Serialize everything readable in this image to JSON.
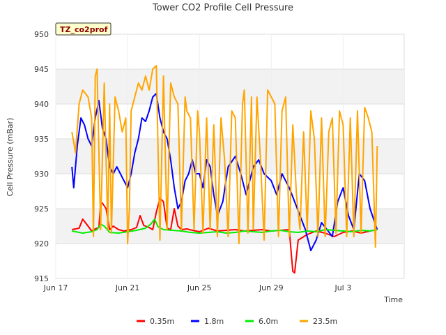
{
  "chart_data": {
    "type": "line",
    "title": "Tower CO2 Profile Cell Pressure",
    "badge": "TZ_co2prof",
    "xlabel": "Time",
    "ylabel": "Cell Pressure (mBar)",
    "ylim": [
      915,
      950
    ],
    "xlim": [
      0,
      19.4
    ],
    "y_ticks": [
      915,
      920,
      925,
      930,
      935,
      940,
      945,
      950
    ],
    "x_ticks": [
      {
        "label": "Jun 17",
        "value": 0
      },
      {
        "label": "Jun 21",
        "value": 4
      },
      {
        "label": "Jun 25",
        "value": 8
      },
      {
        "label": "Jun 29",
        "value": 12
      },
      {
        "label": "Jul 3",
        "value": 16
      }
    ],
    "grid": true,
    "legend_position": "bottom",
    "series": [
      {
        "name": "0.35m",
        "color": "#ff0000",
        "x": [
          0.9,
          1.3,
          1.5,
          1.8,
          2.0,
          2.2,
          2.4,
          2.5,
          2.6,
          2.8,
          3.0,
          3.2,
          3.5,
          3.8,
          4.2,
          4.5,
          4.7,
          4.9,
          5.2,
          5.4,
          5.6,
          5.8,
          6.0,
          6.2,
          6.4,
          6.6,
          6.8,
          7.0,
          7.3,
          7.6,
          8.0,
          8.5,
          9.0,
          9.5,
          10.0,
          10.5,
          11.0,
          11.5,
          12.0,
          12.5,
          13.0,
          13.1,
          13.2,
          13.3,
          13.5,
          14.0,
          14.5,
          15.0,
          15.5,
          16.0,
          16.5,
          17.0,
          17.5,
          17.9
        ],
        "values": [
          922.0,
          922.2,
          923.5,
          922.5,
          921.8,
          922.1,
          922.3,
          925.8,
          925.8,
          925.0,
          922.0,
          922.5,
          922.0,
          921.8,
          922.0,
          922.3,
          924.0,
          922.6,
          922.3,
          922.0,
          924.5,
          926.5,
          926.0,
          922.2,
          922.0,
          925.0,
          922.5,
          922.0,
          922.1,
          921.9,
          921.7,
          922.2,
          921.8,
          921.9,
          922.0,
          921.8,
          921.9,
          922.0,
          921.8,
          921.9,
          922.0,
          919.0,
          916.0,
          915.8,
          920.5,
          921.3,
          921.8,
          921.5,
          921.0,
          921.6,
          921.8,
          921.5,
          921.8,
          922.0
        ]
      },
      {
        "name": "1.8m",
        "color": "#0000ff",
        "x": [
          0.9,
          1.0,
          1.2,
          1.4,
          1.6,
          1.8,
          2.0,
          2.2,
          2.4,
          2.6,
          2.8,
          3.0,
          3.2,
          3.4,
          3.6,
          3.8,
          4.0,
          4.2,
          4.4,
          4.6,
          4.8,
          5.0,
          5.2,
          5.4,
          5.6,
          5.8,
          6.0,
          6.2,
          6.4,
          6.6,
          6.8,
          7.0,
          7.2,
          7.4,
          7.6,
          7.8,
          8.0,
          8.2,
          8.4,
          8.6,
          8.8,
          9.0,
          9.3,
          9.6,
          10.0,
          10.3,
          10.6,
          11.0,
          11.3,
          11.6,
          12.0,
          12.3,
          12.6,
          13.0,
          13.3,
          13.6,
          13.9,
          14.2,
          14.5,
          14.8,
          15.1,
          15.4,
          15.7,
          16.0,
          16.3,
          16.6,
          16.9,
          17.2,
          17.5,
          17.9
        ],
        "values": [
          931.0,
          928.0,
          934.0,
          938.0,
          937.0,
          935.0,
          934.0,
          938.0,
          940.5,
          936.5,
          935.0,
          931.0,
          930.0,
          931.0,
          930.0,
          929.0,
          928.0,
          930.0,
          933.0,
          935.0,
          938.0,
          937.5,
          939.0,
          941.0,
          941.5,
          938.0,
          936.0,
          935.0,
          932.0,
          928.0,
          925.0,
          926.0,
          929.0,
          930.0,
          932.0,
          930.0,
          930.0,
          928.0,
          932.0,
          931.0,
          927.0,
          924.0,
          926.0,
          931.0,
          932.5,
          930.0,
          927.0,
          931.0,
          932.0,
          930.0,
          929.0,
          927.0,
          930.0,
          928.0,
          926.0,
          924.0,
          922.0,
          919.0,
          920.5,
          923.0,
          922.0,
          921.0,
          926.0,
          928.0,
          924.0,
          922.0,
          930.0,
          929.0,
          925.0,
          922.0
        ]
      },
      {
        "name": "6.0m",
        "color": "#00ee00",
        "x": [
          0.9,
          1.5,
          2.0,
          2.3,
          2.5,
          2.7,
          3.0,
          3.5,
          4.0,
          4.5,
          5.0,
          5.3,
          5.5,
          5.7,
          6.0,
          6.5,
          7.0,
          7.5,
          8.0,
          8.5,
          9.0,
          9.5,
          10.0,
          10.5,
          11.0,
          11.5,
          12.0,
          12.5,
          13.0,
          13.5,
          14.0,
          14.5,
          15.0,
          15.5,
          16.0,
          16.5,
          17.0,
          17.5,
          17.9
        ],
        "values": [
          921.8,
          921.5,
          921.7,
          922.0,
          922.8,
          922.5,
          921.6,
          921.5,
          921.7,
          921.9,
          922.2,
          922.8,
          923.5,
          922.4,
          922.0,
          921.9,
          921.8,
          921.6,
          921.5,
          921.6,
          921.7,
          921.5,
          921.6,
          921.8,
          921.7,
          921.6,
          921.8,
          921.9,
          921.7,
          921.6,
          921.8,
          921.7,
          922.0,
          921.9,
          921.8,
          921.7,
          921.9,
          921.8,
          922.0
        ]
      },
      {
        "name": "23.5m",
        "color": "#ffa500",
        "x": [
          0.9,
          1.1,
          1.3,
          1.5,
          1.8,
          2.0,
          2.1,
          2.2,
          2.3,
          2.5,
          2.7,
          2.9,
          3.0,
          3.1,
          3.3,
          3.5,
          3.7,
          3.9,
          4.0,
          4.1,
          4.2,
          4.4,
          4.6,
          4.8,
          5.0,
          5.2,
          5.4,
          5.6,
          5.8,
          6.0,
          6.2,
          6.4,
          6.6,
          6.8,
          7.0,
          7.2,
          7.3,
          7.5,
          7.7,
          7.9,
          8.0,
          8.2,
          8.4,
          8.6,
          8.8,
          9.0,
          9.2,
          9.4,
          9.6,
          9.8,
          10.0,
          10.2,
          10.4,
          10.5,
          10.7,
          10.9,
          11.0,
          11.2,
          11.4,
          11.6,
          11.8,
          12.0,
          12.2,
          12.4,
          12.6,
          12.8,
          13.0,
          13.2,
          13.4,
          13.6,
          13.8,
          14.0,
          14.2,
          14.4,
          14.6,
          14.8,
          15.0,
          15.2,
          15.4,
          15.6,
          15.8,
          16.0,
          16.2,
          16.4,
          16.6,
          16.8,
          17.0,
          17.2,
          17.4,
          17.6,
          17.8,
          17.9
        ],
        "values": [
          936.0,
          933.0,
          940.0,
          942.0,
          941.0,
          938.0,
          921.0,
          944.0,
          945.0,
          922.0,
          943.0,
          922.0,
          940.0,
          921.5,
          941.0,
          939.0,
          936.0,
          938.0,
          920.0,
          925.0,
          939.0,
          941.0,
          943.0,
          942.0,
          944.0,
          942.0,
          945.0,
          945.5,
          920.5,
          944.0,
          922.0,
          943.0,
          941.0,
          940.0,
          922.0,
          941.0,
          939.0,
          938.0,
          922.0,
          939.0,
          936.0,
          921.5,
          938.0,
          922.0,
          937.0,
          921.0,
          938.0,
          932.0,
          921.0,
          939.0,
          938.0,
          920.0,
          940.0,
          942.0,
          921.5,
          941.0,
          922.0,
          941.0,
          932.0,
          920.5,
          942.0,
          941.0,
          940.0,
          921.0,
          939.0,
          941.0,
          921.0,
          937.0,
          927.0,
          922.0,
          936.0,
          922.0,
          939.0,
          935.0,
          921.0,
          938.0,
          921.0,
          936.0,
          938.0,
          921.5,
          939.0,
          937.0,
          921.0,
          938.0,
          921.0,
          939.0,
          921.5,
          939.5,
          938.0,
          936.0,
          919.5,
          934.0
        ]
      }
    ]
  }
}
